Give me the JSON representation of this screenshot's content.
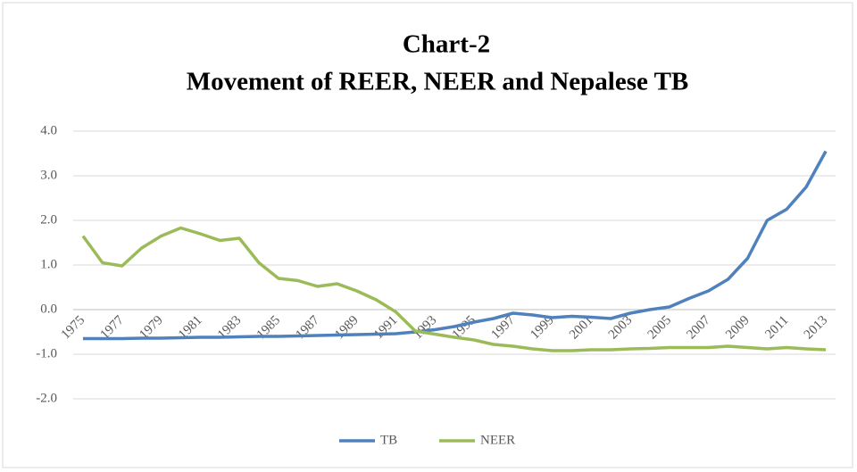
{
  "chart_data": {
    "type": "line",
    "title": "Chart-2",
    "subtitle": "Movement of REER, NEER and Nepalese TB",
    "categories": [
      "1975",
      null,
      "1977",
      null,
      "1979",
      null,
      "1981",
      null,
      "1983",
      null,
      "1985",
      null,
      "1987",
      null,
      "1989",
      null,
      "1991",
      null,
      "1993",
      null,
      "1995",
      null,
      "1997",
      null,
      "1999",
      null,
      "2001",
      null,
      "2003",
      null,
      "2005",
      null,
      "2007",
      null,
      "2009",
      null,
      "2011",
      null,
      "2013"
    ],
    "series": [
      {
        "name": "TB",
        "color": "#4f81bd",
        "values": [
          -0.65,
          -0.65,
          -0.65,
          -0.64,
          -0.64,
          -0.63,
          -0.62,
          -0.62,
          -0.61,
          -0.6,
          -0.6,
          -0.59,
          -0.58,
          -0.57,
          -0.56,
          -0.55,
          -0.54,
          -0.5,
          -0.45,
          -0.38,
          -0.28,
          -0.2,
          -0.08,
          -0.12,
          -0.18,
          -0.15,
          -0.17,
          -0.2,
          -0.08,
          0.0,
          0.06,
          0.25,
          0.42,
          0.68,
          1.15,
          2.0,
          2.25,
          2.75,
          3.55
        ]
      },
      {
        "name": "NEER",
        "color": "#9bbb59",
        "values": [
          1.65,
          1.05,
          0.98,
          1.38,
          1.65,
          1.83,
          1.7,
          1.55,
          1.6,
          1.05,
          0.7,
          0.65,
          0.52,
          0.58,
          0.42,
          0.22,
          -0.05,
          -0.48,
          -0.55,
          -0.62,
          -0.68,
          -0.78,
          -0.82,
          -0.88,
          -0.92,
          -0.92,
          -0.9,
          -0.9,
          -0.88,
          -0.87,
          -0.85,
          -0.85,
          -0.85,
          -0.82,
          -0.85,
          -0.88,
          -0.85,
          -0.88,
          -0.9
        ]
      }
    ],
    "ylim": [
      -2,
      4
    ],
    "yticks": [
      {
        "value": -2,
        "label": "-2.0"
      },
      {
        "value": -1,
        "label": "-1.0"
      },
      {
        "value": 0,
        "label": "0.0"
      },
      {
        "value": 1,
        "label": "1.0"
      },
      {
        "value": 2,
        "label": "2.0"
      },
      {
        "value": 3,
        "label": "3.0"
      },
      {
        "value": 4,
        "label": "4.0"
      }
    ],
    "grid": true,
    "legend": "bottom"
  }
}
